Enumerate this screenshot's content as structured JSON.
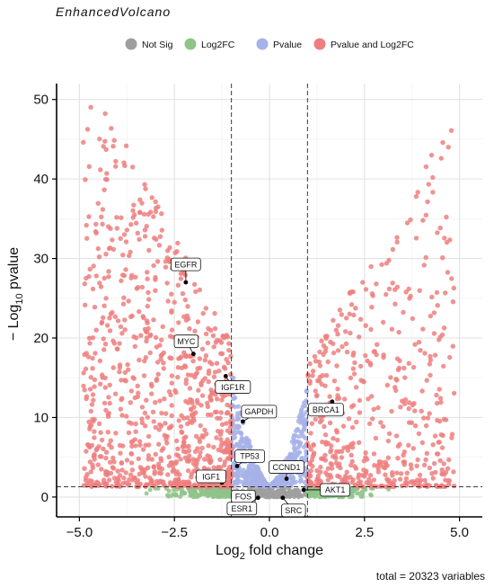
{
  "chart_data": {
    "type": "scatter",
    "title": "EnhancedVolcano",
    "caption": "total = 20323 variables",
    "x_title": {
      "pre": "Log",
      "sub": "2",
      "post": " fold change"
    },
    "y_title": {
      "pre": "− Log",
      "sub": "10",
      "post": " pvalue"
    },
    "xlim": [
      -5.6,
      5.6
    ],
    "ylim": [
      -2.5,
      52
    ],
    "x_ticks": [
      -5.0,
      -2.5,
      0.0,
      2.5,
      5.0
    ],
    "x_tick_labels": [
      "−5.0",
      "−2.5",
      "0.0",
      "2.5",
      "5.0"
    ],
    "y_ticks": [
      0,
      10,
      20,
      30,
      40,
      50
    ],
    "y_tick_labels": [
      "0",
      "10",
      "20",
      "30",
      "40",
      "50"
    ],
    "fc_cutoff": 1.0,
    "p_cutoff_y": 1.3,
    "grid": true,
    "legend_position": "top",
    "legend": [
      {
        "label": "Not Sig",
        "color": "#9e9e9e"
      },
      {
        "label": "Log2FC",
        "color": "#8fc48a"
      },
      {
        "label": "Pvalue",
        "color": "#a6b2e8"
      },
      {
        "label": "Pvalue and Log2FC",
        "color": "#ef7f7f"
      }
    ],
    "labeled_genes": [
      {
        "name": "EGFR",
        "x": -2.2,
        "y": 27.0
      },
      {
        "name": "MYC",
        "x": -2.0,
        "y": 18.0
      },
      {
        "name": "IGF1R",
        "x": -1.15,
        "y": 15.2
      },
      {
        "name": "GAPDH",
        "x": -0.7,
        "y": 9.5
      },
      {
        "name": "TP53",
        "x": -0.85,
        "y": 3.9
      },
      {
        "name": "IGF1",
        "x": -1.25,
        "y": 1.8
      },
      {
        "name": "FOS",
        "x": -0.45,
        "y": 0.4
      },
      {
        "name": "ESR1",
        "x": -0.3,
        "y": -0.1
      },
      {
        "name": "SRC",
        "x": 0.35,
        "y": -0.1
      },
      {
        "name": "CCND1",
        "x": 0.45,
        "y": 2.3
      },
      {
        "name": "AKT1",
        "x": 0.9,
        "y": 0.9
      },
      {
        "name": "BRCA1",
        "x": 1.65,
        "y": 12.0
      }
    ]
  }
}
